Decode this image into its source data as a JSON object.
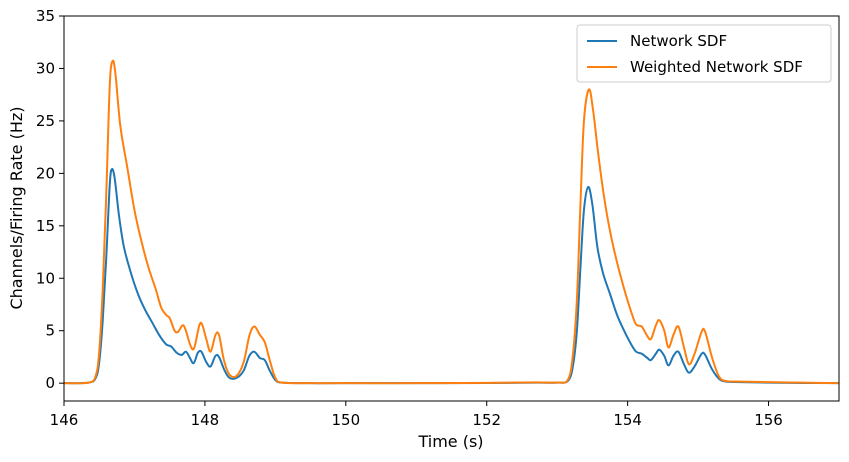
{
  "chart_data": {
    "type": "line",
    "title": "",
    "xlabel": "Time (s)",
    "ylabel": "Channels/Firing Rate (Hz)",
    "xlim": [
      146,
      157
    ],
    "ylim": [
      -1.7,
      35
    ],
    "xticks": [
      146,
      148,
      150,
      152,
      154,
      156
    ],
    "yticks": [
      0,
      5,
      10,
      15,
      20,
      25,
      30,
      35
    ],
    "grid": false,
    "legend": {
      "placement": "top-right"
    },
    "series": [
      {
        "name": "Network SDF",
        "color": "#1f77b4",
        "points": [
          [
            146.0,
            0
          ],
          [
            146.35,
            0.05
          ],
          [
            146.45,
            0.5
          ],
          [
            146.5,
            2.0
          ],
          [
            146.55,
            6.0
          ],
          [
            146.6,
            12.0
          ],
          [
            146.65,
            19.0
          ],
          [
            146.68,
            20.4
          ],
          [
            146.72,
            19.5
          ],
          [
            146.78,
            16.0
          ],
          [
            146.85,
            13.0
          ],
          [
            146.95,
            10.5
          ],
          [
            147.05,
            8.5
          ],
          [
            147.15,
            7.0
          ],
          [
            147.25,
            5.8
          ],
          [
            147.35,
            4.6
          ],
          [
            147.45,
            3.7
          ],
          [
            147.52,
            3.5
          ],
          [
            147.6,
            2.9
          ],
          [
            147.67,
            2.7
          ],
          [
            147.73,
            3.0
          ],
          [
            147.78,
            2.5
          ],
          [
            147.84,
            1.9
          ],
          [
            147.9,
            2.9
          ],
          [
            147.95,
            3.0
          ],
          [
            148.02,
            2.0
          ],
          [
            148.08,
            1.6
          ],
          [
            148.15,
            2.6
          ],
          [
            148.2,
            2.5
          ],
          [
            148.28,
            1.2
          ],
          [
            148.35,
            0.5
          ],
          [
            148.45,
            0.5
          ],
          [
            148.55,
            1.2
          ],
          [
            148.63,
            2.6
          ],
          [
            148.7,
            3.0
          ],
          [
            148.78,
            2.4
          ],
          [
            148.85,
            2.2
          ],
          [
            148.92,
            1.2
          ],
          [
            149.0,
            0.3
          ],
          [
            149.1,
            0.05
          ],
          [
            149.5,
            0
          ],
          [
            150.0,
            0
          ],
          [
            151.0,
            0
          ],
          [
            152.0,
            0.02
          ],
          [
            152.7,
            0.05
          ],
          [
            153.0,
            0.05
          ],
          [
            153.15,
            0.2
          ],
          [
            153.22,
            1.5
          ],
          [
            153.28,
            5.0
          ],
          [
            153.33,
            11.0
          ],
          [
            153.38,
            16.5
          ],
          [
            153.44,
            18.7
          ],
          [
            153.5,
            17.0
          ],
          [
            153.57,
            13.0
          ],
          [
            153.65,
            10.5
          ],
          [
            153.75,
            8.5
          ],
          [
            153.85,
            6.5
          ],
          [
            153.95,
            5.0
          ],
          [
            154.05,
            3.7
          ],
          [
            154.12,
            3.0
          ],
          [
            154.2,
            2.8
          ],
          [
            154.28,
            2.4
          ],
          [
            154.33,
            2.2
          ],
          [
            154.4,
            2.8
          ],
          [
            154.45,
            3.2
          ],
          [
            154.52,
            2.6
          ],
          [
            154.58,
            1.7
          ],
          [
            154.65,
            2.6
          ],
          [
            154.72,
            3.0
          ],
          [
            154.8,
            1.8
          ],
          [
            154.87,
            1.0
          ],
          [
            154.95,
            1.6
          ],
          [
            155.05,
            2.8
          ],
          [
            155.1,
            2.7
          ],
          [
            155.2,
            1.3
          ],
          [
            155.3,
            0.4
          ],
          [
            155.4,
            0.15
          ],
          [
            155.6,
            0.1
          ],
          [
            156.0,
            0.05
          ],
          [
            156.5,
            0.02
          ],
          [
            157.0,
            0
          ]
        ]
      },
      {
        "name": "Weighted Network SDF",
        "color": "#ff7f0e",
        "points": [
          [
            146.0,
            0
          ],
          [
            146.35,
            0.05
          ],
          [
            146.45,
            0.7
          ],
          [
            146.5,
            3.0
          ],
          [
            146.55,
            9.0
          ],
          [
            146.6,
            18.0
          ],
          [
            146.65,
            28.5
          ],
          [
            146.69,
            30.7
          ],
          [
            146.73,
            29.5
          ],
          [
            146.8,
            24.5
          ],
          [
            146.9,
            20.5
          ],
          [
            147.0,
            16.5
          ],
          [
            147.1,
            13.5
          ],
          [
            147.2,
            11.0
          ],
          [
            147.3,
            9.0
          ],
          [
            147.38,
            7.2
          ],
          [
            147.45,
            6.5
          ],
          [
            147.5,
            6.2
          ],
          [
            147.57,
            5.0
          ],
          [
            147.62,
            4.9
          ],
          [
            147.68,
            5.5
          ],
          [
            147.72,
            5.2
          ],
          [
            147.8,
            3.5
          ],
          [
            147.85,
            3.4
          ],
          [
            147.92,
            5.5
          ],
          [
            147.96,
            5.6
          ],
          [
            148.02,
            4.2
          ],
          [
            148.08,
            3.0
          ],
          [
            148.15,
            4.6
          ],
          [
            148.2,
            4.6
          ],
          [
            148.27,
            2.2
          ],
          [
            148.35,
            0.8
          ],
          [
            148.45,
            0.7
          ],
          [
            148.55,
            2.0
          ],
          [
            148.63,
            4.5
          ],
          [
            148.7,
            5.4
          ],
          [
            148.78,
            4.6
          ],
          [
            148.85,
            3.9
          ],
          [
            148.92,
            2.2
          ],
          [
            149.0,
            0.5
          ],
          [
            149.1,
            0.05
          ],
          [
            149.5,
            0
          ],
          [
            150.0,
            0
          ],
          [
            151.0,
            0
          ],
          [
            152.0,
            0.03
          ],
          [
            152.7,
            0.07
          ],
          [
            153.0,
            0.06
          ],
          [
            153.15,
            0.3
          ],
          [
            153.22,
            2.5
          ],
          [
            153.28,
            8.0
          ],
          [
            153.33,
            17.0
          ],
          [
            153.38,
            25.0
          ],
          [
            153.45,
            28.0
          ],
          [
            153.51,
            26.0
          ],
          [
            153.58,
            22.0
          ],
          [
            153.66,
            18.0
          ],
          [
            153.75,
            14.5
          ],
          [
            153.85,
            11.5
          ],
          [
            153.95,
            9.0
          ],
          [
            154.05,
            6.8
          ],
          [
            154.12,
            5.6
          ],
          [
            154.2,
            5.4
          ],
          [
            154.27,
            4.6
          ],
          [
            154.33,
            4.2
          ],
          [
            154.4,
            5.5
          ],
          [
            154.45,
            6.0
          ],
          [
            154.52,
            5.0
          ],
          [
            154.58,
            3.4
          ],
          [
            154.65,
            4.6
          ],
          [
            154.72,
            5.4
          ],
          [
            154.8,
            3.4
          ],
          [
            154.87,
            1.8
          ],
          [
            154.95,
            2.8
          ],
          [
            155.05,
            4.9
          ],
          [
            155.1,
            4.9
          ],
          [
            155.2,
            2.4
          ],
          [
            155.3,
            0.6
          ],
          [
            155.4,
            0.2
          ],
          [
            155.6,
            0.15
          ],
          [
            156.0,
            0.1
          ],
          [
            156.5,
            0.05
          ],
          [
            157.0,
            0
          ]
        ]
      }
    ]
  }
}
